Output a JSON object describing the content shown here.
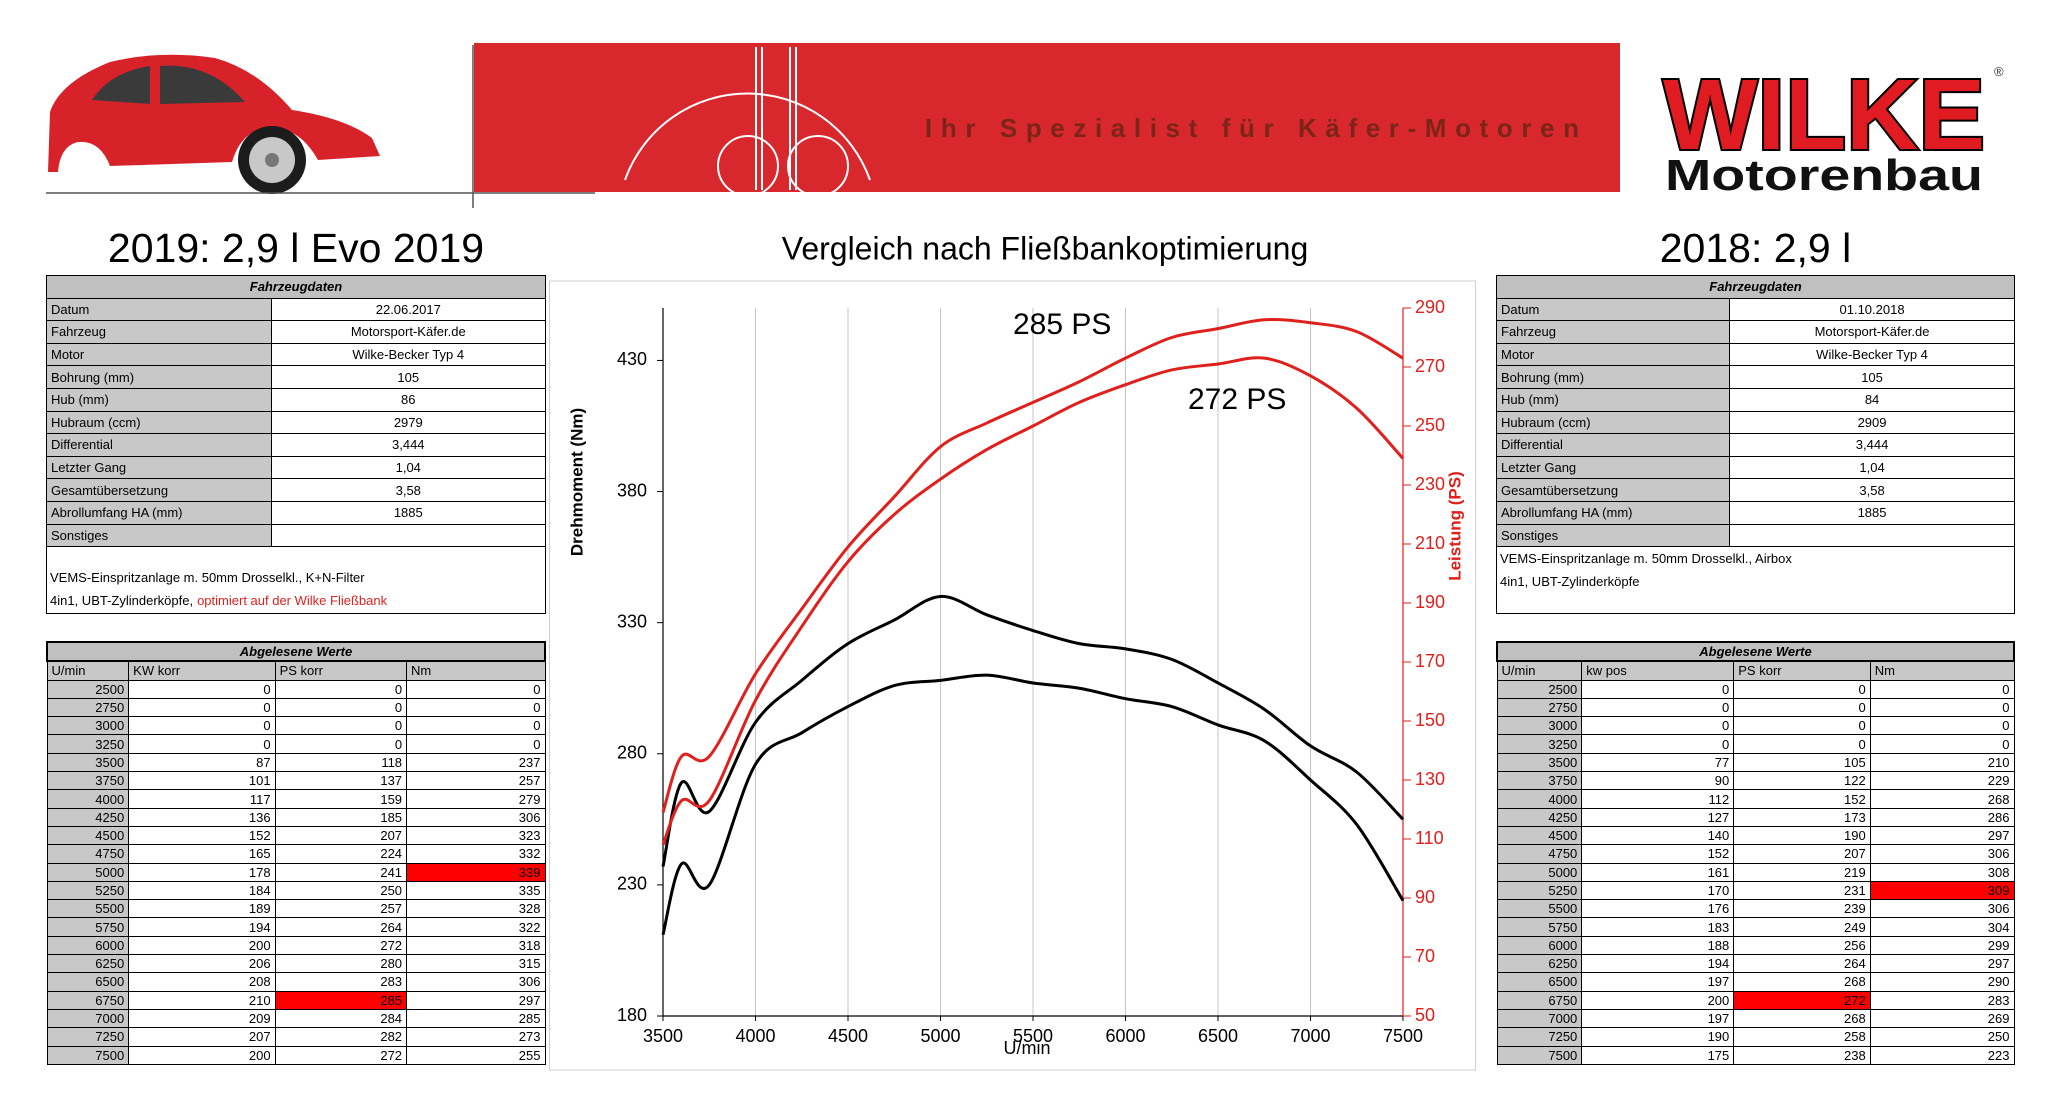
{
  "header": {
    "slogan": "Ihr Spezialist für Käfer-Motoren",
    "logo": "WILKE",
    "logo_sub": "Motorenbau",
    "logo_mark": "®"
  },
  "left": {
    "heading": "2019: 2,9 l Evo 2019",
    "info": {
      "title": "Fahrzeugdaten",
      "rows": [
        [
          "Datum",
          "22.06.2017"
        ],
        [
          "Fahrzeug",
          "Motorsport-Käfer.de"
        ],
        [
          "Motor",
          "Wilke-Becker Typ 4"
        ],
        [
          "Bohrung (mm)",
          105
        ],
        [
          "Hub (mm)",
          86
        ],
        [
          "Hubraum (ccm)",
          2979
        ],
        [
          "Differential",
          "3,444"
        ],
        [
          "Letzter Gang",
          "1,04"
        ],
        [
          "Gesamtübersetzung",
          "3,58"
        ],
        [
          "Abrollumfang HA (mm)",
          1885
        ],
        [
          "Sonstiges"
        ]
      ],
      "notes": [
        "VEMS-Einspritzanlage m. 50mm Drosselkl., K+N-Filter",
        "4in1, UBT-Zylinderköpfe,"
      ],
      "notes_highlight": "optimiert auf der Wilke Fließbank",
      "notes_highlight_color": "#e02020"
    },
    "readings": {
      "title": "Abgelesene Werte",
      "columns": [
        "U/min",
        "KW korr",
        "PS korr",
        "Nm"
      ],
      "rows": [
        [
          2500,
          0,
          0,
          0
        ],
        [
          2750,
          0,
          0,
          0
        ],
        [
          3000,
          0,
          0,
          0
        ],
        [
          3250,
          0,
          0,
          0
        ],
        [
          3500,
          87,
          118,
          237
        ],
        [
          3750,
          101,
          137,
          257
        ],
        [
          4000,
          117,
          159,
          279
        ],
        [
          4250,
          136,
          185,
          306
        ],
        [
          4500,
          152,
          207,
          323
        ],
        [
          4750,
          165,
          224,
          332
        ],
        [
          5000,
          178,
          241,
          339
        ],
        [
          5250,
          184,
          250,
          335
        ],
        [
          5500,
          189,
          257,
          328
        ],
        [
          5750,
          194,
          264,
          322
        ],
        [
          6000,
          200,
          272,
          318
        ],
        [
          6250,
          206,
          280,
          315
        ],
        [
          6500,
          208,
          283,
          306
        ],
        [
          6750,
          210,
          285,
          297
        ],
        [
          7000,
          209,
          284,
          285
        ],
        [
          7250,
          207,
          282,
          273
        ],
        [
          7500,
          200,
          272,
          255
        ]
      ],
      "highlight": [
        [
          10,
          3
        ],
        [
          17,
          2
        ]
      ],
      "highlight_color": "#ff0000"
    }
  },
  "right": {
    "heading": "2018: 2,9 l",
    "info": {
      "title": "Fahrzeugdaten",
      "rows": [
        [
          "Datum",
          "01.10.2018"
        ],
        [
          "Fahrzeug",
          "Motorsport-Käfer.de"
        ],
        [
          "Motor",
          "Wilke-Becker Typ 4"
        ],
        [
          "Bohrung (mm)",
          105
        ],
        [
          "Hub (mm)",
          84
        ],
        [
          "Hubraum (ccm)",
          2909
        ],
        [
          "Differential",
          "3,444"
        ],
        [
          "Letzter Gang",
          "1,04"
        ],
        [
          "Gesamtübersetzung",
          "3,58"
        ],
        [
          "Abrollumfang HA (mm)",
          1885
        ],
        [
          "Sonstiges"
        ]
      ],
      "notes": [
        "VEMS-Einspritzanlage m. 50mm Drosselkl., Airbox",
        "4in1, UBT-Zylinderköpfe"
      ]
    },
    "readings": {
      "title": "Abgelesene Werte",
      "columns": [
        "U/min",
        "kw pos",
        "PS korr",
        "Nm"
      ],
      "rows": [
        [
          2500,
          0,
          0,
          0
        ],
        [
          2750,
          0,
          0,
          0
        ],
        [
          3000,
          0,
          0,
          0
        ],
        [
          3250,
          0,
          0,
          0
        ],
        [
          3500,
          77,
          105,
          210
        ],
        [
          3750,
          90,
          122,
          229
        ],
        [
          4000,
          112,
          152,
          268
        ],
        [
          4250,
          127,
          173,
          286
        ],
        [
          4500,
          140,
          190,
          297
        ],
        [
          4750,
          152,
          207,
          306
        ],
        [
          5000,
          161,
          219,
          308
        ],
        [
          5250,
          170,
          231,
          309
        ],
        [
          5500,
          176,
          239,
          306
        ],
        [
          5750,
          183,
          249,
          304
        ],
        [
          6000,
          188,
          256,
          299
        ],
        [
          6250,
          194,
          264,
          297
        ],
        [
          6500,
          197,
          268,
          290
        ],
        [
          6750,
          200,
          272,
          283
        ],
        [
          7000,
          197,
          268,
          269
        ],
        [
          7250,
          190,
          258,
          250
        ],
        [
          7500,
          175,
          238,
          223
        ]
      ],
      "highlight": [
        [
          11,
          3
        ],
        [
          17,
          2
        ]
      ],
      "highlight_color": "#ff0000"
    }
  },
  "chart_data": {
    "type": "line",
    "title": "Vergleich nach Fließbankoptimierung",
    "x_label": "U/min",
    "y_label": "Drehmoment (Nm)",
    "y2_label": "Leistung (PS)",
    "y2_color": "#e0201c",
    "x": [
      3500,
      3600,
      3750,
      4000,
      4250,
      4500,
      4750,
      5000,
      5250,
      5500,
      5750,
      6000,
      6250,
      6500,
      6750,
      7000,
      7250,
      7500
    ],
    "xlim": [
      3500,
      7500
    ],
    "xticks": [
      3500,
      4000,
      4500,
      5000,
      5500,
      6000,
      6500,
      7000,
      7500
    ],
    "ylim": [
      180,
      450
    ],
    "yticks": [
      180,
      230,
      280,
      330,
      380,
      430
    ],
    "y2lim": [
      50,
      290
    ],
    "y2ticks": [
      50,
      70,
      90,
      110,
      130,
      150,
      170,
      190,
      210,
      230,
      250,
      270,
      290
    ],
    "grid": true,
    "series": [
      {
        "color": "#000000",
        "values": [
          237,
          269,
          258,
          292,
          308,
          322,
          331,
          340,
          333,
          327,
          322,
          320,
          316,
          307,
          297,
          283,
          273,
          255
        ]
      },
      {
        "color": "#000000",
        "values": [
          211,
          238,
          230,
          276,
          288,
          298,
          306,
          308,
          310,
          307,
          305,
          301,
          298,
          291,
          285,
          270,
          253,
          224
        ]
      },
      {
        "color": "#e0201c",
        "axis": "y2",
        "values": [
          119,
          138,
          138,
          166,
          188,
          209,
          226,
          243,
          251,
          258,
          265,
          273,
          280,
          283,
          286,
          285,
          282,
          273
        ]
      },
      {
        "color": "#e0201c",
        "axis": "y2",
        "values": [
          108,
          123,
          123,
          157,
          182,
          204,
          220,
          232,
          242,
          250,
          258,
          264,
          269,
          271,
          273,
          267,
          256,
          239
        ]
      }
    ],
    "annotations": [
      "285 PS",
      "272 PS"
    ]
  }
}
